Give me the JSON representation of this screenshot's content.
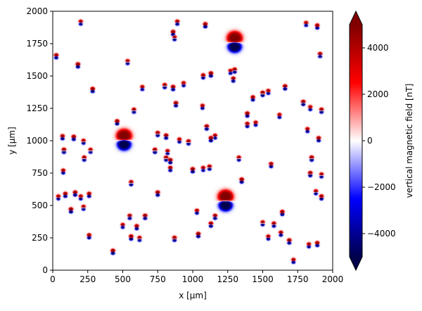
{
  "chart_data": {
    "type": "heatmap",
    "colormap": "seismic",
    "colormap_stops": [
      "#00004d",
      "#0000ff",
      "#ffffff",
      "#ff0000",
      "#800000"
    ],
    "xlabel": "x [µm]",
    "ylabel": "y [µm]",
    "xlim": [
      0,
      2000
    ],
    "ylim": [
      0,
      2000
    ],
    "xticks": [
      0,
      250,
      500,
      750,
      1000,
      1250,
      1500,
      1750,
      2000
    ],
    "yticks": [
      0,
      250,
      500,
      750,
      1000,
      1250,
      1500,
      1750,
      2000
    ],
    "colorbar": {
      "label": "vertical magnetic field [nT]",
      "range": [
        -5000,
        5000
      ],
      "ticks": [
        -4000,
        -2000,
        0,
        2000,
        4000
      ],
      "extend": "both"
    },
    "large_dipoles": [
      {
        "x": 1300,
        "y": 1755,
        "strength": 1.0
      },
      {
        "x": 510,
        "y": 1000,
        "strength": 1.0
      },
      {
        "x": 1235,
        "y": 530,
        "strength": 1.0
      }
    ],
    "small_dipoles": [
      {
        "x": 200,
        "y": 1910
      },
      {
        "x": 890,
        "y": 1910
      },
      {
        "x": 1090,
        "y": 1890
      },
      {
        "x": 1810,
        "y": 1900
      },
      {
        "x": 1890,
        "y": 1880
      },
      {
        "x": 860,
        "y": 1830
      },
      {
        "x": 870,
        "y": 1790
      },
      {
        "x": 25,
        "y": 1650
      },
      {
        "x": 180,
        "y": 1580
      },
      {
        "x": 535,
        "y": 1605
      },
      {
        "x": 1075,
        "y": 1495
      },
      {
        "x": 1130,
        "y": 1510
      },
      {
        "x": 1270,
        "y": 1530
      },
      {
        "x": 1910,
        "y": 1660
      },
      {
        "x": 285,
        "y": 1390
      },
      {
        "x": 640,
        "y": 1405
      },
      {
        "x": 800,
        "y": 1420
      },
      {
        "x": 860,
        "y": 1405
      },
      {
        "x": 935,
        "y": 1435
      },
      {
        "x": 1300,
        "y": 1540
      },
      {
        "x": 1500,
        "y": 1360
      },
      {
        "x": 1540,
        "y": 1375
      },
      {
        "x": 1430,
        "y": 1325
      },
      {
        "x": 1790,
        "y": 1290
      },
      {
        "x": 1840,
        "y": 1250
      },
      {
        "x": 1920,
        "y": 1230
      },
      {
        "x": 880,
        "y": 1280
      },
      {
        "x": 1070,
        "y": 1260
      },
      {
        "x": 580,
        "y": 1230
      },
      {
        "x": 1390,
        "y": 1200
      },
      {
        "x": 1620,
        "y": 1190
      },
      {
        "x": 1390,
        "y": 1120
      },
      {
        "x": 1100,
        "y": 1100
      },
      {
        "x": 1820,
        "y": 1080
      },
      {
        "x": 70,
        "y": 1025
      },
      {
        "x": 150,
        "y": 1020
      },
      {
        "x": 220,
        "y": 990
      },
      {
        "x": 750,
        "y": 1050
      },
      {
        "x": 810,
        "y": 1030
      },
      {
        "x": 905,
        "y": 1000
      },
      {
        "x": 970,
        "y": 985
      },
      {
        "x": 1130,
        "y": 1010
      },
      {
        "x": 1160,
        "y": 1030
      },
      {
        "x": 1900,
        "y": 1010
      },
      {
        "x": 80,
        "y": 920
      },
      {
        "x": 270,
        "y": 920
      },
      {
        "x": 225,
        "y": 860
      },
      {
        "x": 730,
        "y": 920
      },
      {
        "x": 820,
        "y": 910
      },
      {
        "x": 810,
        "y": 860
      },
      {
        "x": 840,
        "y": 840
      },
      {
        "x": 1330,
        "y": 860
      },
      {
        "x": 1560,
        "y": 810
      },
      {
        "x": 1850,
        "y": 860
      },
      {
        "x": 75,
        "y": 760
      },
      {
        "x": 840,
        "y": 780
      },
      {
        "x": 1000,
        "y": 770
      },
      {
        "x": 1075,
        "y": 780
      },
      {
        "x": 1120,
        "y": 790
      },
      {
        "x": 1840,
        "y": 740
      },
      {
        "x": 1920,
        "y": 730
      },
      {
        "x": 560,
        "y": 670
      },
      {
        "x": 1350,
        "y": 690
      },
      {
        "x": 40,
        "y": 560
      },
      {
        "x": 90,
        "y": 580
      },
      {
        "x": 160,
        "y": 590
      },
      {
        "x": 200,
        "y": 560
      },
      {
        "x": 260,
        "y": 580
      },
      {
        "x": 750,
        "y": 590
      },
      {
        "x": 1880,
        "y": 600
      },
      {
        "x": 1920,
        "y": 560
      },
      {
        "x": 130,
        "y": 460
      },
      {
        "x": 220,
        "y": 480
      },
      {
        "x": 550,
        "y": 410
      },
      {
        "x": 660,
        "y": 410
      },
      {
        "x": 1030,
        "y": 450
      },
      {
        "x": 1160,
        "y": 410
      },
      {
        "x": 1640,
        "y": 440
      },
      {
        "x": 1500,
        "y": 360
      },
      {
        "x": 1580,
        "y": 350
      },
      {
        "x": 1130,
        "y": 350
      },
      {
        "x": 500,
        "y": 340
      },
      {
        "x": 260,
        "y": 260
      },
      {
        "x": 560,
        "y": 250
      },
      {
        "x": 620,
        "y": 240
      },
      {
        "x": 870,
        "y": 240
      },
      {
        "x": 1040,
        "y": 270
      },
      {
        "x": 1540,
        "y": 250
      },
      {
        "x": 1630,
        "y": 280
      },
      {
        "x": 1690,
        "y": 220
      },
      {
        "x": 1830,
        "y": 190
      },
      {
        "x": 1890,
        "y": 200
      },
      {
        "x": 430,
        "y": 140
      },
      {
        "x": 1720,
        "y": 70
      },
      {
        "x": 1290,
        "y": 1470
      },
      {
        "x": 460,
        "y": 1140
      },
      {
        "x": 1450,
        "y": 1130
      },
      {
        "x": 600,
        "y": 330
      },
      {
        "x": 1660,
        "y": 1410
      }
    ]
  }
}
